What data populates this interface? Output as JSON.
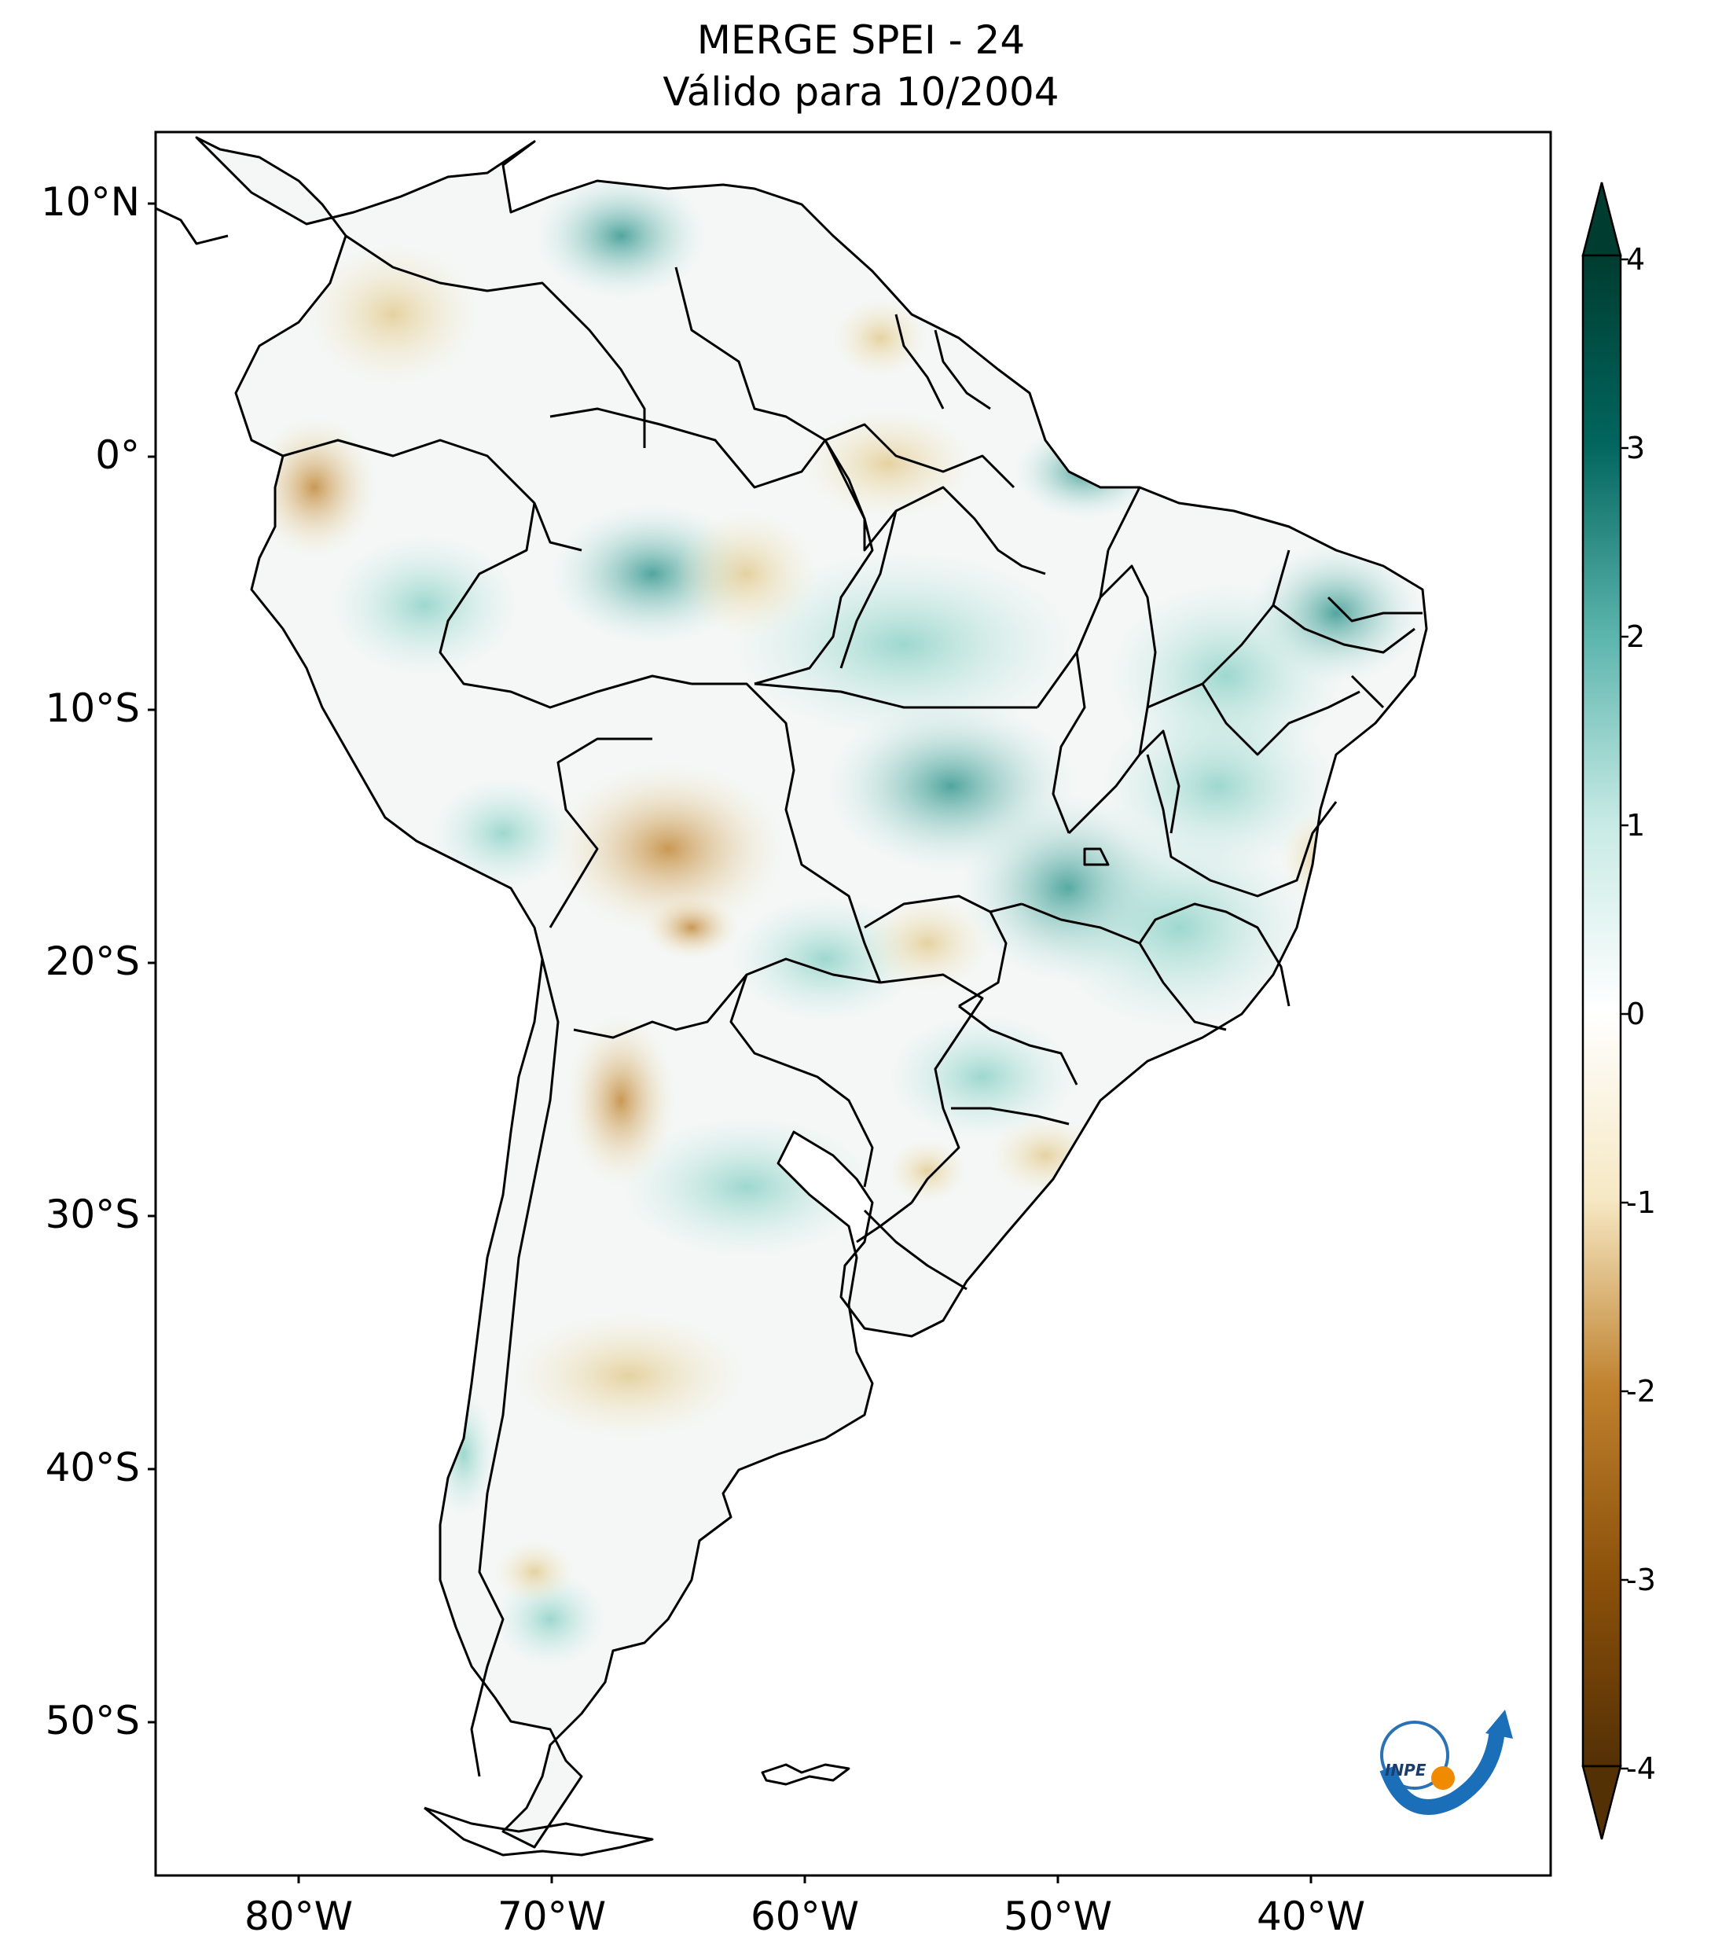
{
  "title_line1": "MERGE   SPEI - 24",
  "title_line2": "Válido para 10/2004",
  "lat_ticks": [
    "10°N",
    "0°",
    "10°S",
    "20°S",
    "30°S",
    "40°S",
    "50°S"
  ],
  "lon_ticks": [
    "80°W",
    "70°W",
    "60°W",
    "50°W",
    "40°W"
  ],
  "colorbar": {
    "ticks": [
      "4",
      "3",
      "2",
      "1",
      "0",
      "-1",
      "-2",
      "-3",
      "-4"
    ],
    "min": -4,
    "max": 4,
    "extend": "both",
    "colors": {
      "high": "#01443a",
      "mid_high": "#35978f",
      "low_high": "#c7eae5",
      "zero": "#f5f5f5",
      "low_dry": "#f6e8c3",
      "mid_dry": "#bf812d",
      "high_dry": "#543005"
    }
  },
  "logo": {
    "text": "INPE",
    "icon": "inpe-logo-icon"
  },
  "map": {
    "region": "South America",
    "lon_range": [
      -85,
      -30
    ],
    "lat_range": [
      -56,
      13
    ]
  }
}
